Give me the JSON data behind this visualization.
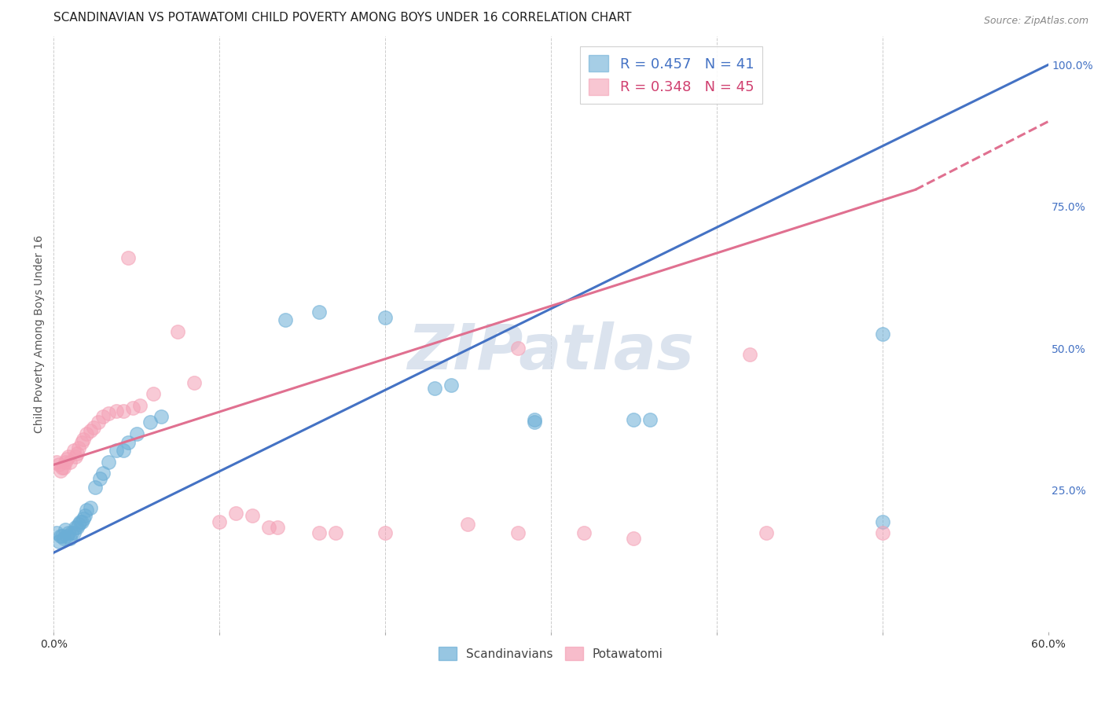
{
  "title": "SCANDINAVIAN VS POTAWATOMI CHILD POVERTY AMONG BOYS UNDER 16 CORRELATION CHART",
  "source": "Source: ZipAtlas.com",
  "ylabel": "Child Poverty Among Boys Under 16",
  "xlim": [
    0.0,
    0.6
  ],
  "ylim": [
    0.0,
    1.05
  ],
  "xticks": [
    0.0,
    0.1,
    0.2,
    0.3,
    0.4,
    0.5,
    0.6
  ],
  "xticklabels": [
    "0.0%",
    "",
    "",
    "",
    "",
    "",
    "60.0%"
  ],
  "yticks_right": [
    0.0,
    0.25,
    0.5,
    0.75,
    1.0
  ],
  "yticklabels_right": [
    "",
    "25.0%",
    "50.0%",
    "75.0%",
    "100.0%"
  ],
  "R_blue": 0.457,
  "N_blue": 41,
  "R_pink": 0.348,
  "N_pink": 45,
  "blue_color": "#6baed6",
  "pink_color": "#f4a0b5",
  "blue_line_color": "#4472c4",
  "pink_line_color": "#e07090",
  "legend_blue_text_color": "#4472c4",
  "legend_pink_text_color": "#d04070",
  "watermark_color": "#ccd8e8",
  "background_color": "#ffffff",
  "grid_color": "#cccccc",
  "scatter_blue": [
    [
      0.002,
      0.175
    ],
    [
      0.003,
      0.16
    ],
    [
      0.004,
      0.17
    ],
    [
      0.005,
      0.17
    ],
    [
      0.006,
      0.165
    ],
    [
      0.007,
      0.18
    ],
    [
      0.008,
      0.17
    ],
    [
      0.009,
      0.175
    ],
    [
      0.01,
      0.165
    ],
    [
      0.011,
      0.175
    ],
    [
      0.012,
      0.175
    ],
    [
      0.013,
      0.185
    ],
    [
      0.014,
      0.185
    ],
    [
      0.015,
      0.19
    ],
    [
      0.016,
      0.195
    ],
    [
      0.017,
      0.195
    ],
    [
      0.018,
      0.2
    ],
    [
      0.019,
      0.205
    ],
    [
      0.02,
      0.215
    ],
    [
      0.022,
      0.22
    ],
    [
      0.025,
      0.255
    ],
    [
      0.028,
      0.27
    ],
    [
      0.03,
      0.28
    ],
    [
      0.033,
      0.3
    ],
    [
      0.038,
      0.32
    ],
    [
      0.042,
      0.32
    ],
    [
      0.045,
      0.335
    ],
    [
      0.05,
      0.35
    ],
    [
      0.058,
      0.37
    ],
    [
      0.065,
      0.38
    ],
    [
      0.14,
      0.55
    ],
    [
      0.16,
      0.565
    ],
    [
      0.2,
      0.555
    ],
    [
      0.23,
      0.43
    ],
    [
      0.24,
      0.435
    ],
    [
      0.29,
      0.37
    ],
    [
      0.29,
      0.375
    ],
    [
      0.35,
      0.375
    ],
    [
      0.36,
      0.375
    ],
    [
      0.5,
      0.525
    ],
    [
      0.5,
      0.195
    ]
  ],
  "scatter_pink": [
    [
      0.002,
      0.3
    ],
    [
      0.003,
      0.295
    ],
    [
      0.004,
      0.285
    ],
    [
      0.005,
      0.29
    ],
    [
      0.006,
      0.29
    ],
    [
      0.007,
      0.3
    ],
    [
      0.008,
      0.305
    ],
    [
      0.009,
      0.31
    ],
    [
      0.01,
      0.3
    ],
    [
      0.012,
      0.32
    ],
    [
      0.013,
      0.31
    ],
    [
      0.014,
      0.315
    ],
    [
      0.015,
      0.325
    ],
    [
      0.017,
      0.335
    ],
    [
      0.018,
      0.34
    ],
    [
      0.02,
      0.35
    ],
    [
      0.022,
      0.355
    ],
    [
      0.024,
      0.36
    ],
    [
      0.027,
      0.37
    ],
    [
      0.03,
      0.38
    ],
    [
      0.033,
      0.385
    ],
    [
      0.038,
      0.39
    ],
    [
      0.042,
      0.39
    ],
    [
      0.048,
      0.395
    ],
    [
      0.052,
      0.4
    ],
    [
      0.06,
      0.42
    ],
    [
      0.075,
      0.53
    ],
    [
      0.085,
      0.44
    ],
    [
      0.1,
      0.195
    ],
    [
      0.11,
      0.21
    ],
    [
      0.12,
      0.205
    ],
    [
      0.13,
      0.185
    ],
    [
      0.135,
      0.185
    ],
    [
      0.16,
      0.175
    ],
    [
      0.17,
      0.175
    ],
    [
      0.2,
      0.175
    ],
    [
      0.25,
      0.19
    ],
    [
      0.28,
      0.175
    ],
    [
      0.32,
      0.175
    ],
    [
      0.35,
      0.165
    ],
    [
      0.43,
      0.175
    ],
    [
      0.5,
      0.175
    ],
    [
      0.045,
      0.66
    ],
    [
      0.28,
      0.5
    ],
    [
      0.42,
      0.49
    ]
  ],
  "blue_line": [
    [
      0.0,
      0.14
    ],
    [
      0.6,
      1.0
    ]
  ],
  "pink_line_solid": [
    [
      0.0,
      0.295
    ],
    [
      0.52,
      0.78
    ]
  ],
  "pink_line_dashed": [
    [
      0.52,
      0.78
    ],
    [
      0.6,
      0.9
    ]
  ],
  "title_fontsize": 11,
  "axis_label_fontsize": 10,
  "tick_fontsize": 10,
  "source_fontsize": 9
}
